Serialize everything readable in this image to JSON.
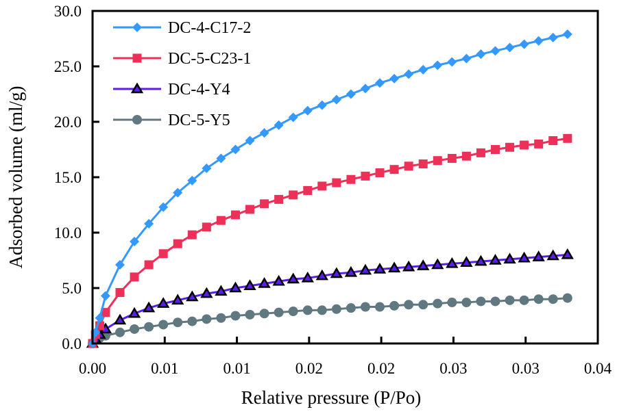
{
  "chart_data": {
    "type": "line",
    "title": "",
    "xlabel": "Relative pressure (P/Po)",
    "ylabel": "Adsorbed volume (ml/g)",
    "xlim": [
      0,
      0.035
    ],
    "ylim": [
      0,
      30
    ],
    "x_ticks": [
      0,
      0.005,
      0.01,
      0.015,
      0.02,
      0.025,
      0.03,
      0.035
    ],
    "x_tick_labels": [
      "0.00",
      "0.01",
      "0.01",
      "0.02",
      "0.02",
      "0.03",
      "0.03",
      "0.04"
    ],
    "y_ticks": [
      0,
      5,
      10,
      15,
      20,
      25,
      30
    ],
    "y_tick_labels": [
      "0.0",
      "5.0",
      "10.0",
      "15.0",
      "20.0",
      "25.0",
      "30.0"
    ],
    "grid": false,
    "legend_position": "top-left",
    "x": [
      0,
      0.0002,
      0.0005,
      0.0009,
      0.0019,
      0.0029,
      0.0039,
      0.0049,
      0.0059,
      0.0069,
      0.0079,
      0.0089,
      0.0099,
      0.0109,
      0.0119,
      0.0129,
      0.0139,
      0.0149,
      0.0159,
      0.0169,
      0.0179,
      0.0189,
      0.0199,
      0.0209,
      0.0219,
      0.0229,
      0.0239,
      0.0249,
      0.0259,
      0.0269,
      0.0279,
      0.0289,
      0.0299,
      0.0309,
      0.0319,
      0.0329
    ],
    "series": [
      {
        "name": "DC-4-C17-2",
        "color": "#3399ff",
        "marker": "diamond",
        "values": [
          0,
          1.0,
          2.3,
          4.3,
          7.1,
          9.2,
          10.8,
          12.3,
          13.6,
          14.7,
          15.8,
          16.7,
          17.5,
          18.3,
          19.0,
          19.7,
          20.4,
          21.0,
          21.5,
          22.0,
          22.5,
          23.0,
          23.5,
          23.9,
          24.3,
          24.7,
          25.1,
          25.4,
          25.7,
          26.1,
          26.4,
          26.7,
          27.0,
          27.3,
          27.6,
          27.9
        ]
      },
      {
        "name": "DC-5-C23-1",
        "color": "#ec3057",
        "marker": "square",
        "values": [
          0,
          0.8,
          1.6,
          2.8,
          4.6,
          6.0,
          7.1,
          8.1,
          9.0,
          9.8,
          10.5,
          11.1,
          11.6,
          12.1,
          12.6,
          13.0,
          13.4,
          13.8,
          14.2,
          14.5,
          14.8,
          15.1,
          15.4,
          15.7,
          16.0,
          16.2,
          16.5,
          16.7,
          16.9,
          17.2,
          17.5,
          17.7,
          17.9,
          18.0,
          18.3,
          18.5
        ]
      },
      {
        "name": "DC-4-Y4",
        "color": "#5a1ee8",
        "marker": "triangle",
        "values": [
          0,
          0.4,
          0.8,
          1.3,
          2.1,
          2.7,
          3.2,
          3.6,
          3.9,
          4.2,
          4.5,
          4.7,
          5.0,
          5.2,
          5.4,
          5.6,
          5.8,
          5.9,
          6.1,
          6.3,
          6.4,
          6.6,
          6.7,
          6.8,
          6.9,
          7.0,
          7.1,
          7.2,
          7.3,
          7.4,
          7.5,
          7.6,
          7.7,
          7.8,
          7.9,
          8.0
        ]
      },
      {
        "name": "DC-5-Y5",
        "color": "#607880",
        "marker": "circle",
        "values": [
          0,
          0.3,
          0.5,
          0.7,
          1.0,
          1.3,
          1.5,
          1.7,
          1.9,
          2.0,
          2.2,
          2.3,
          2.5,
          2.6,
          2.7,
          2.8,
          2.9,
          3.0,
          3.0,
          3.1,
          3.2,
          3.3,
          3.3,
          3.4,
          3.5,
          3.5,
          3.6,
          3.7,
          3.7,
          3.8,
          3.8,
          3.9,
          3.9,
          4.0,
          4.0,
          4.1
        ]
      }
    ]
  }
}
